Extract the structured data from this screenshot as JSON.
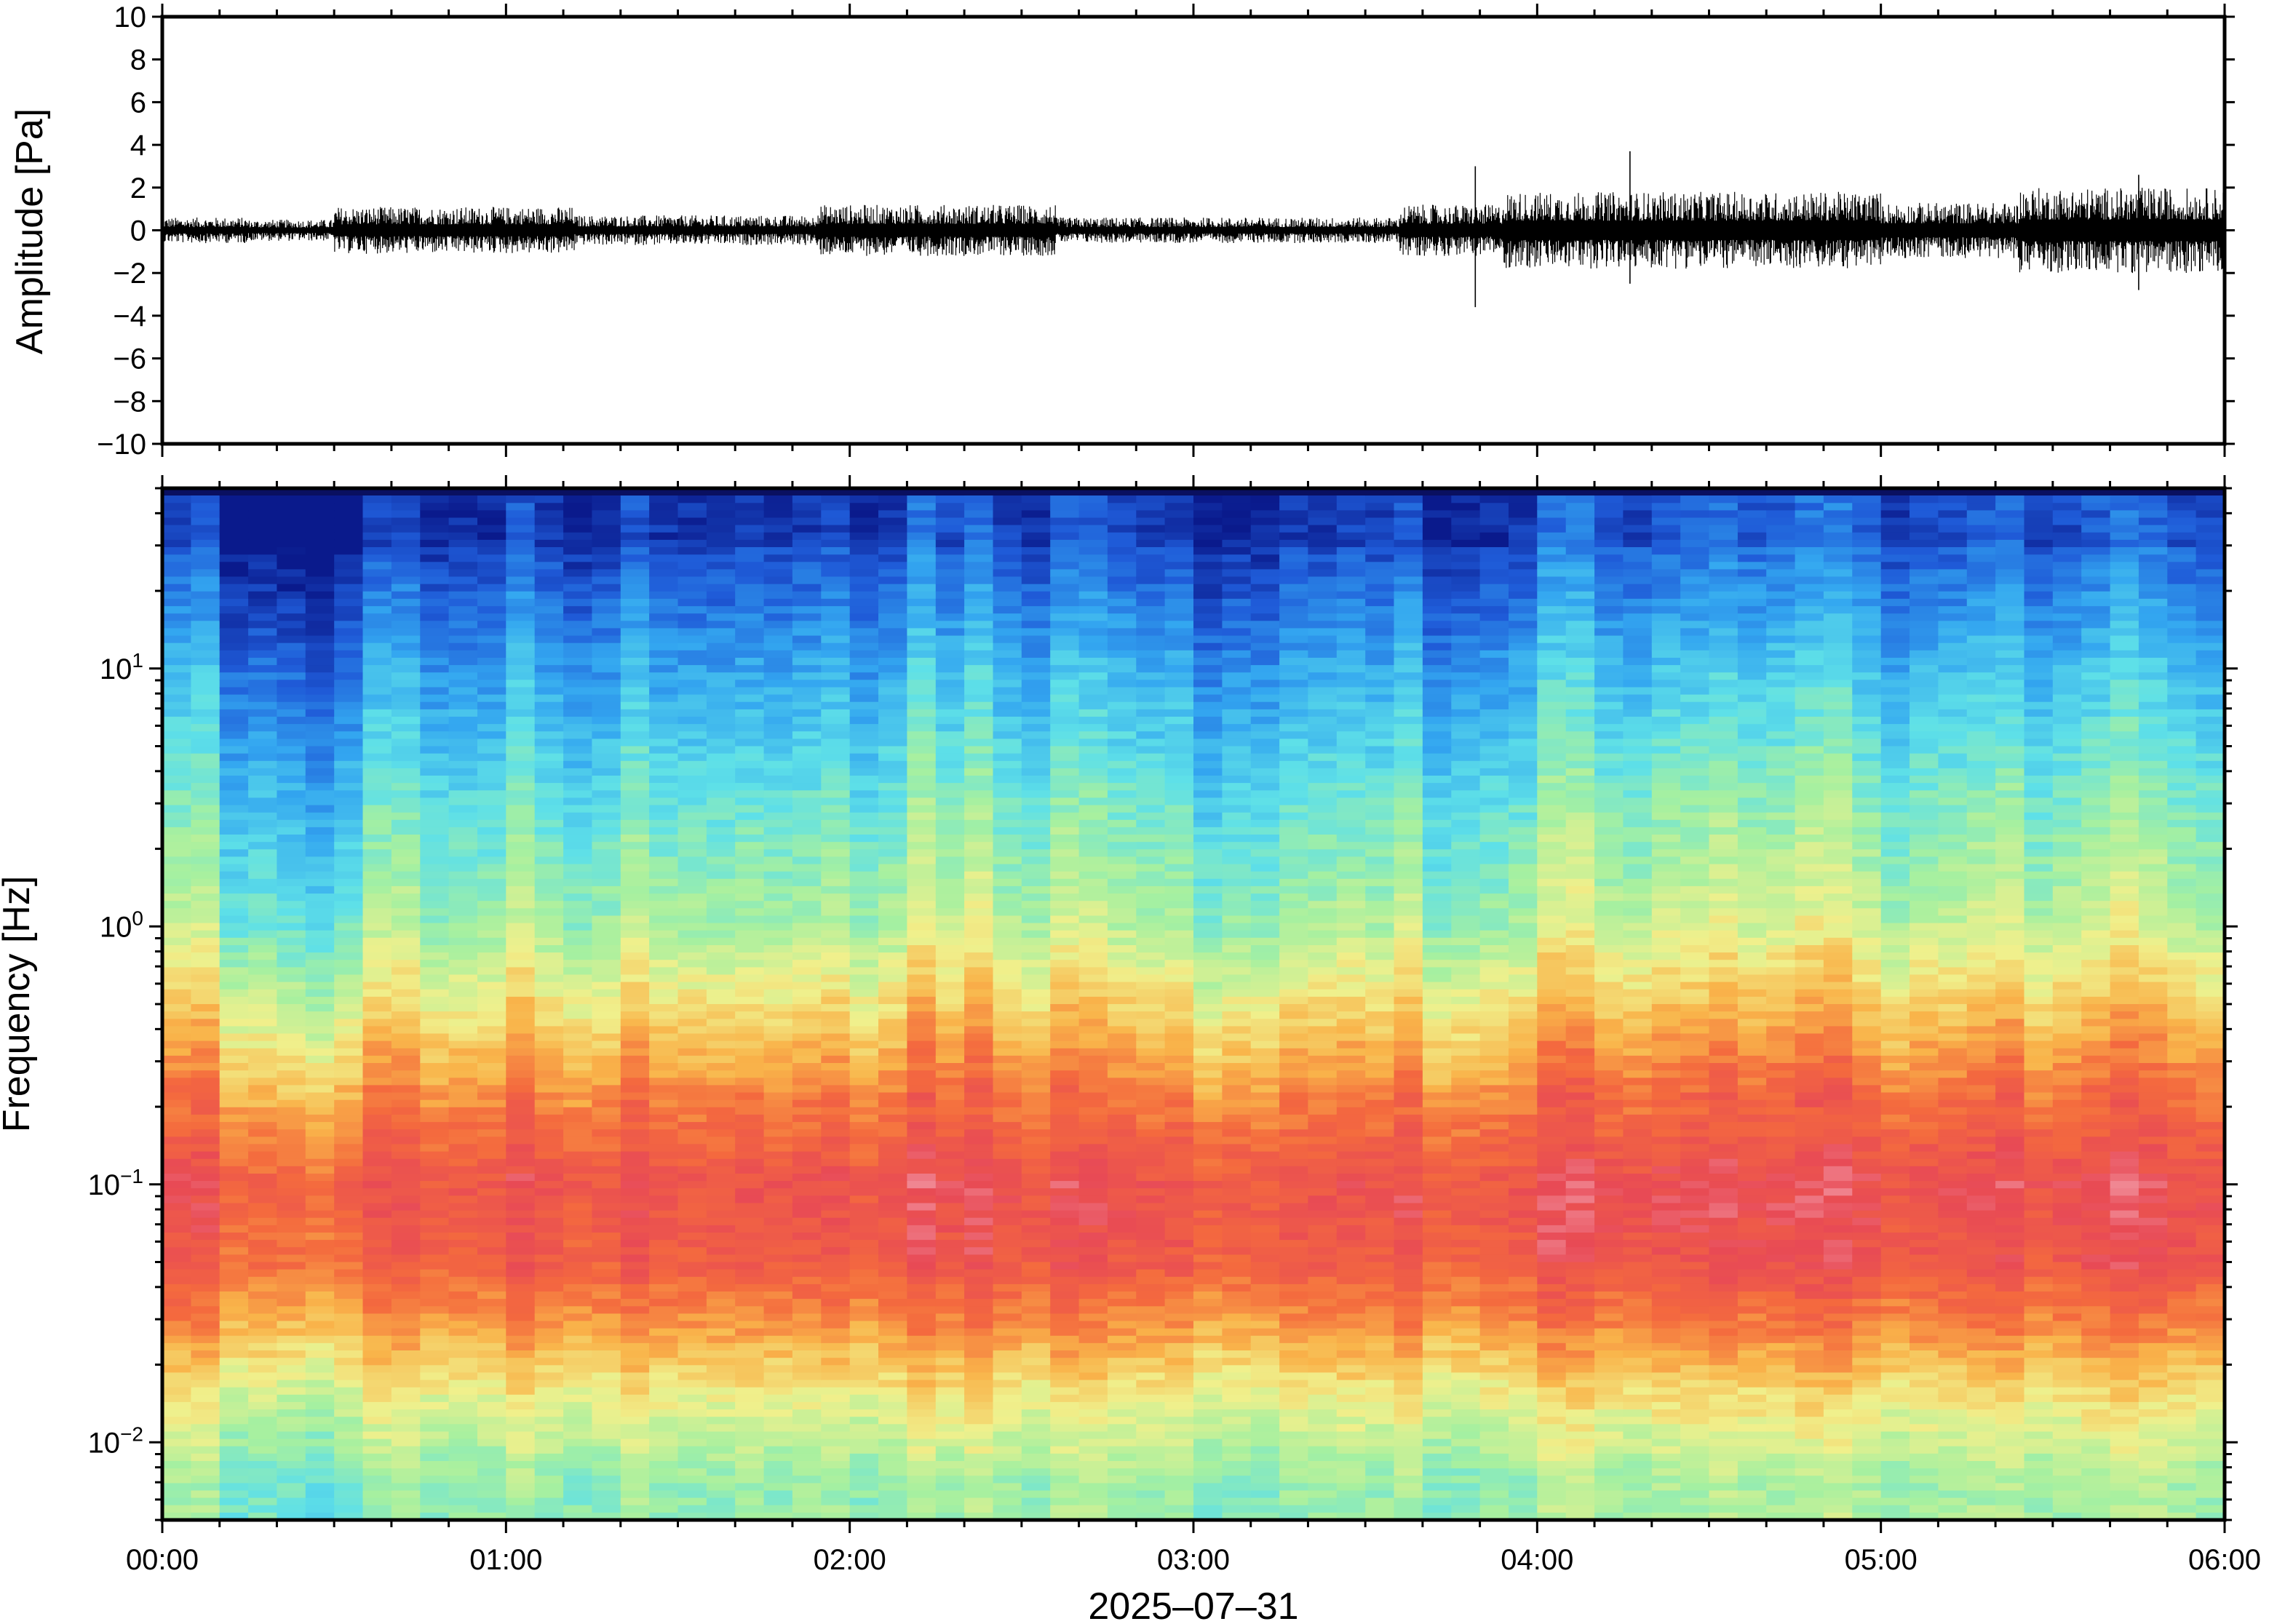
{
  "figure": {
    "date_label": "2025–07–31"
  },
  "chart_data": [
    {
      "type": "line",
      "panel": "waveform",
      "ylabel": "Amplitude [Pa]",
      "xlabel": "",
      "ylim": [
        -10,
        10
      ],
      "yticks": [
        10,
        8,
        6,
        4,
        2,
        0,
        -2,
        -4,
        -6,
        -8,
        -10
      ],
      "ytick_labels": [
        "10",
        "8",
        "6",
        "4",
        "2",
        "0",
        "−2",
        "−4",
        "−6",
        "−8",
        "−10"
      ],
      "xlim_hours": [
        0,
        6
      ],
      "x_tick_hours": [
        0,
        1,
        2,
        3,
        4,
        5,
        6
      ],
      "x_tick_labels": [],
      "grid": false,
      "envelope": {
        "description_units": "peak amplitude in Pa per time segment",
        "segments": [
          {
            "t_start_h": 0.0,
            "t_end_h": 0.25,
            "peak": 0.6
          },
          {
            "t_start_h": 0.25,
            "t_end_h": 0.5,
            "peak": 0.5
          },
          {
            "t_start_h": 0.5,
            "t_end_h": 1.2,
            "peak": 1.1
          },
          {
            "t_start_h": 1.2,
            "t_end_h": 1.9,
            "peak": 0.7
          },
          {
            "t_start_h": 1.9,
            "t_end_h": 2.6,
            "peak": 1.2
          },
          {
            "t_start_h": 2.6,
            "t_end_h": 3.6,
            "peak": 0.6
          },
          {
            "t_start_h": 3.6,
            "t_end_h": 3.9,
            "peak": 1.2
          },
          {
            "t_start_h": 3.9,
            "t_end_h": 5.0,
            "peak": 1.8
          },
          {
            "t_start_h": 5.0,
            "t_end_h": 5.4,
            "peak": 1.3
          },
          {
            "t_start_h": 5.4,
            "t_end_h": 6.0,
            "peak": 2.0
          }
        ],
        "spikes": [
          {
            "t_h": 3.82,
            "max": 3.0,
            "min": -3.6
          },
          {
            "t_h": 4.27,
            "max": 3.7,
            "min": -2.5
          },
          {
            "t_h": 5.75,
            "max": 2.6,
            "min": -2.8
          }
        ]
      }
    },
    {
      "type": "heatmap",
      "panel": "spectrogram",
      "ylabel": "Frequency [Hz]",
      "xlabel": "2025–07–31",
      "yscale": "log",
      "ylim_hz": [
        0.005,
        50
      ],
      "yticks": [
        {
          "base": "10",
          "exp": "1",
          "value": 10
        },
        {
          "base": "10",
          "exp": "0",
          "value": 1
        },
        {
          "base": "10",
          "exp": "−1",
          "value": 0.1
        },
        {
          "base": "10",
          "exp": "−2",
          "value": 0.01
        }
      ],
      "xlim_hours": [
        0,
        6
      ],
      "x_tick_hours": [
        0,
        1,
        2,
        3,
        4,
        5,
        6
      ],
      "x_tick_labels": [
        "00:00",
        "01:00",
        "02:00",
        "03:00",
        "04:00",
        "05:00",
        "06:00"
      ],
      "colormap": "rainbow (blue = low power, red/pink = high power)",
      "colormap_stops": [
        "#0a1a8c",
        "#1f5bd8",
        "#33a6f0",
        "#5ee0e8",
        "#a6f0a0",
        "#f0f08c",
        "#f9b44a",
        "#f46a3e",
        "#e84a55",
        "#f7b6c2"
      ],
      "grid": false,
      "power_summary": [
        {
          "freq_hz": 30,
          "level": 0.08
        },
        {
          "freq_hz": 10,
          "level": 0.22
        },
        {
          "freq_hz": 3,
          "level": 0.35
        },
        {
          "freq_hz": 1,
          "level": 0.45
        },
        {
          "freq_hz": 0.5,
          "level": 0.58
        },
        {
          "freq_hz": 0.2,
          "level": 0.75
        },
        {
          "freq_hz": 0.1,
          "level": 0.85
        },
        {
          "freq_hz": 0.05,
          "level": 0.82
        },
        {
          "freq_hz": 0.03,
          "level": 0.72
        },
        {
          "freq_hz": 0.015,
          "level": 0.55
        },
        {
          "freq_hz": 0.007,
          "level": 0.42
        }
      ]
    }
  ]
}
